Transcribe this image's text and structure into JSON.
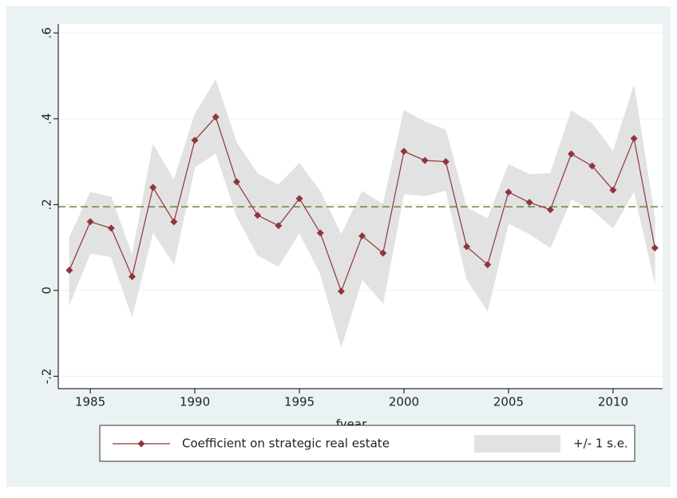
{
  "chart_data": {
    "type": "line",
    "xlabel": "fyear",
    "x": [
      1984,
      1985,
      1986,
      1987,
      1988,
      1989,
      1990,
      1991,
      1992,
      1993,
      1994,
      1995,
      1996,
      1997,
      1998,
      1999,
      2000,
      2001,
      2002,
      2003,
      2004,
      2005,
      2006,
      2007,
      2008,
      2009,
      2010,
      2011,
      2012
    ],
    "series": [
      {
        "name": "Coefficient on strategic real estate",
        "color": "#90353b",
        "values": [
          0.047,
          0.16,
          0.145,
          0.032,
          0.24,
          0.16,
          0.35,
          0.404,
          0.253,
          0.175,
          0.151,
          0.214,
          0.134,
          -0.002,
          0.127,
          0.087,
          0.324,
          0.303,
          0.3,
          0.102,
          0.06,
          0.229,
          0.205,
          0.188,
          0.318,
          0.29,
          0.234,
          0.354,
          0.099
        ]
      },
      {
        "name": "+/- 1 s.e.",
        "color": "#e2e2e2",
        "upper": [
          0.123,
          0.229,
          0.218,
          0.082,
          0.34,
          0.257,
          0.411,
          0.491,
          0.344,
          0.272,
          0.246,
          0.296,
          0.231,
          0.13,
          0.231,
          0.201,
          0.42,
          0.393,
          0.374,
          0.193,
          0.167,
          0.294,
          0.27,
          0.273,
          0.419,
          0.389,
          0.324,
          0.478,
          0.169
        ],
        "lower": [
          -0.033,
          0.086,
          0.078,
          -0.061,
          0.136,
          0.061,
          0.287,
          0.32,
          0.173,
          0.082,
          0.056,
          0.134,
          0.039,
          -0.132,
          0.026,
          -0.03,
          0.225,
          0.22,
          0.233,
          0.026,
          -0.048,
          0.156,
          0.132,
          0.099,
          0.212,
          0.188,
          0.145,
          0.231,
          0.017
        ]
      }
    ],
    "reference_line": {
      "value": 0.195,
      "color": "#5d7f2b"
    },
    "xlim": [
      1983.47,
      2012.37
    ],
    "ylim": [
      -0.229,
      0.621
    ],
    "xticks": [
      1985,
      1990,
      1995,
      2000,
      2005,
      2010
    ],
    "yticks": [
      {
        "value": -0.2,
        "label": "-.2"
      },
      0,
      {
        "value": 0.2,
        "label": ".2"
      },
      {
        "value": 0.4,
        "label": ".4"
      },
      {
        "value": 0.6,
        "label": ".6"
      }
    ],
    "grid": true
  }
}
